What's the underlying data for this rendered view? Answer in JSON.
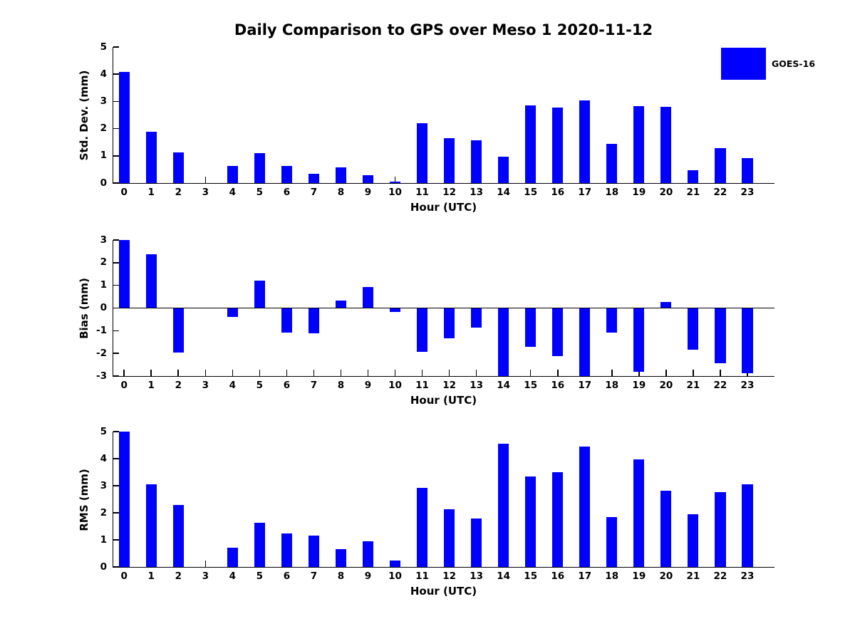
{
  "title": "Daily Comparison to GPS over Meso 1 2020-11-12",
  "legend": {
    "label": "GOES-16"
  },
  "colors": {
    "bar": "#0000FF",
    "axis": "#000000",
    "text": "#000000",
    "background": "#FFFFFF"
  },
  "chart_data": [
    {
      "type": "bar",
      "ylabel": "Std. Dev. (mm)",
      "xlabel": "Hour (UTC)",
      "legend": "GOES-16",
      "legend_position": "upper right, outside axes",
      "grid": false,
      "categories": [
        0,
        1,
        2,
        3,
        4,
        5,
        6,
        7,
        8,
        9,
        10,
        11,
        12,
        13,
        14,
        15,
        16,
        17,
        18,
        19,
        20,
        21,
        22,
        23
      ],
      "values": [
        4.08,
        1.88,
        1.13,
        0,
        0.62,
        1.1,
        0.64,
        0.33,
        0.58,
        0.28,
        0.05,
        2.21,
        1.65,
        1.57,
        0.97,
        2.86,
        2.77,
        3.03,
        1.43,
        2.84,
        2.79,
        0.46,
        1.28,
        0.92
      ],
      "ylim": [
        0,
        5
      ],
      "yticks": [
        0,
        1,
        2,
        3,
        4,
        5
      ],
      "xlim": [
        -0.4,
        24
      ]
    },
    {
      "type": "bar",
      "ylabel": "Bias (mm)",
      "xlabel": "Hour (UTC)",
      "grid": false,
      "zero_line": true,
      "categories": [
        0,
        1,
        2,
        3,
        4,
        5,
        6,
        7,
        8,
        9,
        10,
        11,
        12,
        13,
        14,
        15,
        16,
        17,
        18,
        19,
        20,
        21,
        22,
        23
      ],
      "values": [
        3.0,
        2.38,
        -1.97,
        0,
        -0.4,
        1.22,
        -1.07,
        -1.1,
        0.32,
        0.94,
        -0.18,
        -1.94,
        -1.32,
        -0.85,
        -3.0,
        -1.72,
        -2.13,
        -3.0,
        -1.08,
        -2.8,
        0.28,
        -1.85,
        -2.44,
        -2.86
      ],
      "ylim": [
        -3,
        3
      ],
      "yticks": [
        -3,
        -2,
        -1,
        0,
        1,
        2,
        3
      ],
      "xlim": [
        -0.4,
        24
      ]
    },
    {
      "type": "bar",
      "ylabel": "RMS (mm)",
      "xlabel": "Hour (UTC)",
      "grid": false,
      "categories": [
        0,
        1,
        2,
        3,
        4,
        5,
        6,
        7,
        8,
        9,
        10,
        11,
        12,
        13,
        14,
        15,
        16,
        17,
        18,
        19,
        20,
        21,
        22,
        23
      ],
      "values": [
        5.0,
        3.04,
        2.29,
        0,
        0.71,
        1.63,
        1.25,
        1.17,
        0.66,
        0.96,
        0.23,
        2.92,
        2.14,
        1.79,
        4.56,
        3.35,
        3.5,
        4.46,
        1.84,
        3.97,
        2.81,
        1.95,
        2.76,
        3.04
      ],
      "ylim": [
        0,
        5
      ],
      "yticks": [
        0,
        1,
        2,
        3,
        4,
        5
      ],
      "xlim": [
        -0.4,
        24
      ]
    }
  ]
}
